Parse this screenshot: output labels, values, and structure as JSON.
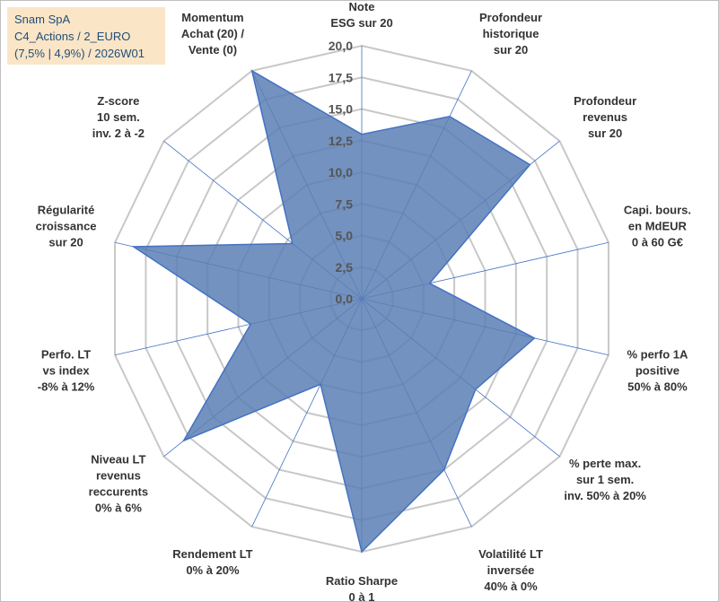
{
  "title": {
    "line1": "Snam SpA",
    "line2": "C4_Actions / 2_EURO",
    "line3": "(7,5% | 4,9%) / 2026W01"
  },
  "chart_data": {
    "type": "radar",
    "rmin": 0,
    "rmax": 20,
    "tick_step": 2.5,
    "tick_labels": [
      "0,0",
      "2,5",
      "5,0",
      "7,5",
      "10,0",
      "12,5",
      "15,0",
      "17,5",
      "20,0"
    ],
    "axes": [
      {
        "label": [
          "Note",
          "ESG sur 20"
        ],
        "value": 13
      },
      {
        "label": [
          "Profondeur",
          "historique",
          "sur 20"
        ],
        "value": 16
      },
      {
        "label": [
          "Profondeur",
          "revenus",
          "sur 20"
        ],
        "value": 17
      },
      {
        "label": [
          "Capi. bours.",
          "en MdEUR",
          "0 à 60 G€"
        ],
        "value": 5.5
      },
      {
        "label": [
          "% perfo 1A",
          "positive",
          "50% à 80%"
        ],
        "value": 14
      },
      {
        "label": [
          "% perte max.",
          "sur 1 sem.",
          "inv. 50% à 20%"
        ],
        "value": 11.5
      },
      {
        "label": [
          "Volatilité LT",
          "inversée",
          "40% à 0%"
        ],
        "value": 15
      },
      {
        "label": [
          "Ratio Sharpe",
          "0 à 1"
        ],
        "value": 20
      },
      {
        "label": [
          "Rendement LT",
          "0% à 20%"
        ],
        "value": 7.5
      },
      {
        "label": [
          "Niveau LT",
          "revenus",
          "reccurents",
          "0% à 6%"
        ],
        "value": 18
      },
      {
        "label": [
          "Perfo. LT",
          "vs index",
          "-8% à 12%"
        ],
        "value": 9
      },
      {
        "label": [
          "Régularité",
          "croissance",
          "sur 20"
        ],
        "value": 18.5
      },
      {
        "label": [
          "Z-score",
          "10 sem.",
          "inv. 2 à -2"
        ],
        "value": 7
      },
      {
        "label": [
          "Momentum",
          "Achat (20) /",
          "Vente (0)"
        ],
        "value": 20
      }
    ],
    "colors": {
      "fill": "#5b7fb4",
      "stroke": "#4472c4",
      "grid": "#c8c8c8",
      "spoke": "#4472c4"
    }
  }
}
